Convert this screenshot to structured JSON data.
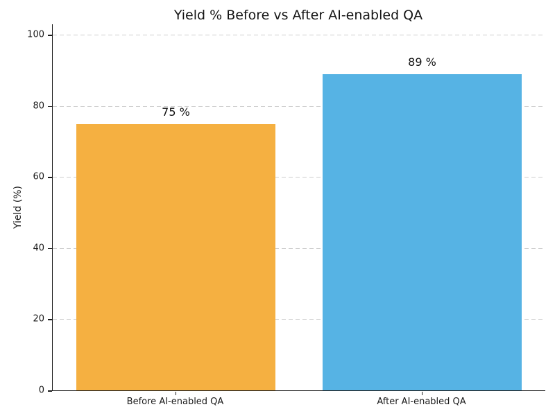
{
  "chart_data": {
    "type": "bar",
    "title": "Yield % Before vs After AI-enabled QA",
    "categories": [
      "Before AI-enabled QA",
      "After AI-enabled QA"
    ],
    "values": [
      75,
      89
    ],
    "value_labels": [
      "75 %",
      "89 %"
    ],
    "bar_colors": [
      "#F5B041",
      "#56B3E4"
    ],
    "xlabel": "",
    "ylabel": "Yield (%)",
    "ylim": [
      0,
      103
    ],
    "yticks": [
      0,
      20,
      40,
      60,
      80,
      100
    ],
    "grid": "horizontal-dashed-on",
    "gridline_color": "#cccccc",
    "axis_color": "#1a1a1a",
    "text_color": "#1a1a1a",
    "background": "#ffffff",
    "legend": "none"
  }
}
